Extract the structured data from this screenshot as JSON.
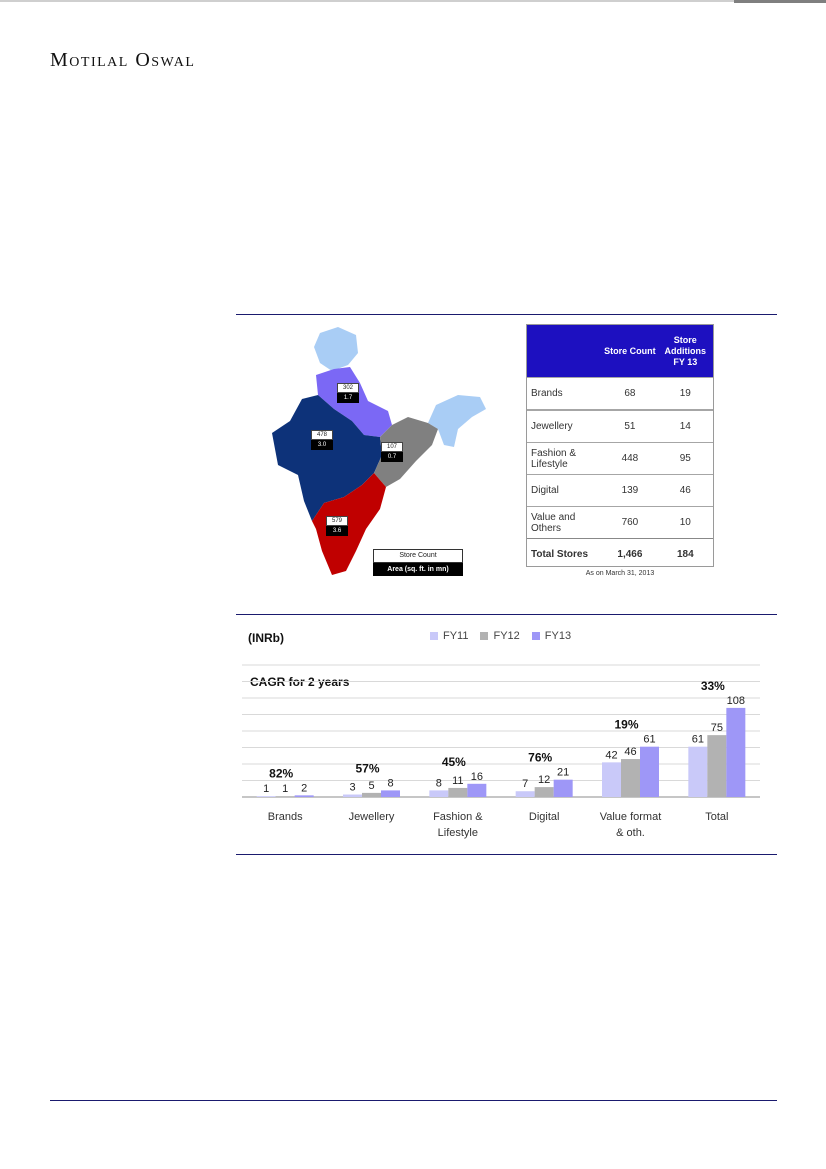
{
  "brand": {
    "name": "Motilal Oswal"
  },
  "store_table": {
    "headers": [
      "",
      "Store Count",
      "Store Additions FY 13"
    ],
    "rows": [
      {
        "label": "Brands",
        "count": "68",
        "additions": "19"
      },
      {
        "label": "Jewellery",
        "count": "51",
        "additions": "14"
      },
      {
        "label": "Fashion & Lifestyle",
        "count": "448",
        "additions": "95"
      },
      {
        "label": "Digital",
        "count": "139",
        "additions": "46"
      },
      {
        "label": "Value and Others",
        "count": "760",
        "additions": "10"
      }
    ],
    "total": {
      "label": "Total Stores",
      "count": "1,466",
      "additions": "184"
    },
    "note": "As on March 31, 2013",
    "header_color": "#1d10c0"
  },
  "map": {
    "regions": [
      {
        "name": "north",
        "count": "302",
        "area": "1.7",
        "color": "#7b68f5"
      },
      {
        "name": "west",
        "count": "478",
        "area": "3.0",
        "color": "#0d3279"
      },
      {
        "name": "east",
        "count": "107",
        "area": "0.7",
        "color": "#808080"
      },
      {
        "name": "south",
        "count": "579",
        "area": "3.6",
        "color": "#c00000"
      }
    ],
    "legend": {
      "top": "Store Count",
      "bottom": "Area (sq. ft. in mn)"
    },
    "other_color": "#a9cdf5"
  },
  "chart_data": {
    "type": "bar",
    "unit_label": "(INRb)",
    "cagr_title": "CAGR for 2 years",
    "categories": [
      "Brands",
      "Jewellery",
      "Fashion & Lifestyle",
      "Digital",
      "Value format & oth.",
      "Total"
    ],
    "series": [
      {
        "name": "FY11",
        "values": [
          1,
          3,
          8,
          7,
          42,
          61
        ],
        "color": "#c9c9f9"
      },
      {
        "name": "FY12",
        "values": [
          1,
          5,
          11,
          12,
          46,
          75
        ],
        "color": "#b2b2b2"
      },
      {
        "name": "FY13",
        "values": [
          2,
          8,
          16,
          21,
          61,
          108
        ],
        "color": "#9e97f7"
      }
    ],
    "cagr": [
      "82%",
      "57%",
      "45%",
      "76%",
      "19%",
      "33%"
    ],
    "ylim": [
      0,
      160
    ],
    "grid": true,
    "legend_position": "top"
  }
}
